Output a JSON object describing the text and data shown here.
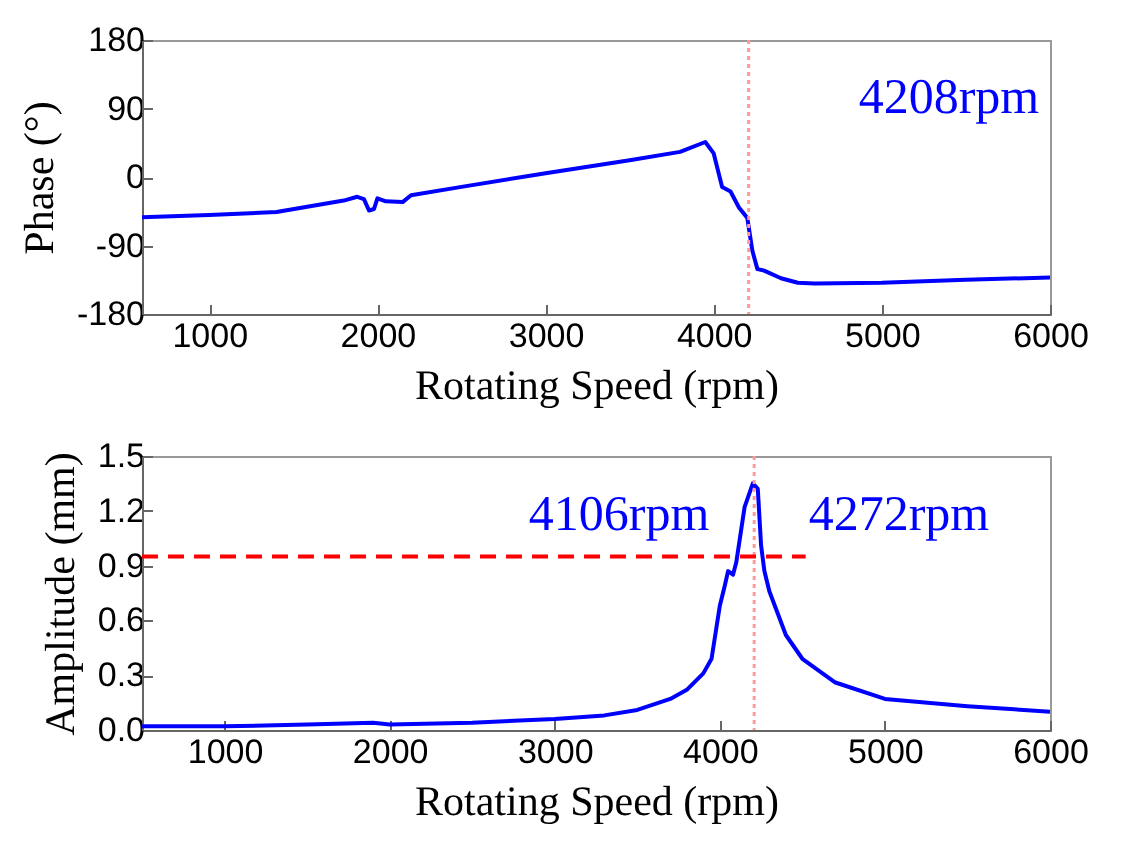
{
  "chart_data": [
    {
      "type": "line",
      "xlabel": "Rotating Speed (rpm)",
      "ylabel": "Phase (°)",
      "xlim": [
        600,
        6000
      ],
      "ylim": [
        -180,
        180
      ],
      "xticks": [
        1000,
        2000,
        3000,
        4000,
        5000,
        6000
      ],
      "yticks": [
        -180,
        -90,
        0,
        90,
        180
      ],
      "line_style": "solid",
      "marker": "none",
      "x": [
        600,
        1000,
        1400,
        1800,
        1880,
        1920,
        1950,
        1980,
        2000,
        2050,
        2150,
        2200,
        2500,
        3000,
        3500,
        3800,
        3950,
        4000,
        4050,
        4100,
        4150,
        4200,
        4230,
        4260,
        4300,
        4400,
        4500,
        4600,
        5000,
        5500,
        6000
      ],
      "series": [
        {
          "color": "#0000ff",
          "values": [
            -53,
            -50,
            -46,
            -31,
            -26,
            -29,
            -44,
            -42,
            -28,
            -32,
            -33,
            -24,
            -13,
            5,
            22,
            33,
            46,
            31,
            -13,
            -19,
            -40,
            -54,
            -97,
            -121,
            -123,
            -133,
            -139,
            -140,
            -139,
            -135,
            -132
          ]
        }
      ],
      "ref_lines": [
        {
          "axis": "x",
          "value": 4208,
          "color": "#ff9999",
          "line_style": "dotted"
        }
      ],
      "annotations": [
        {
          "text": "4208rpm",
          "x": 4208,
          "y": 0
        }
      ]
    },
    {
      "type": "line",
      "xlabel": "Rotating Speed (rpm)",
      "ylabel": "Amplitude (mm)",
      "xlim": [
        500,
        6000
      ],
      "ylim": [
        0,
        1.5
      ],
      "xticks": [
        1000,
        2000,
        3000,
        4000,
        5000,
        6000
      ],
      "yticks": [
        {
          "value": 0,
          "label": "0.0"
        },
        0.3,
        0.6,
        0.9,
        1.2,
        1.5
      ],
      "line_style": "solid",
      "marker": "none",
      "x": [
        500,
        1000,
        1500,
        1900,
        2000,
        2500,
        3000,
        3300,
        3500,
        3700,
        3800,
        3900,
        3950,
        4000,
        4030,
        4050,
        4080,
        4100,
        4150,
        4200,
        4230,
        4250,
        4270,
        4300,
        4400,
        4500,
        4700,
        5000,
        5500,
        6000
      ],
      "series": [
        {
          "color": "#0000ff",
          "values": [
            0.02,
            0.02,
            0.03,
            0.04,
            0.03,
            0.04,
            0.06,
            0.08,
            0.11,
            0.17,
            0.22,
            0.31,
            0.39,
            0.68,
            0.79,
            0.87,
            0.85,
            0.92,
            1.22,
            1.35,
            1.32,
            1.01,
            0.87,
            0.76,
            0.52,
            0.39,
            0.26,
            0.17,
            0.13,
            0.1
          ]
        },
        {
          "type": "line",
          "color": "#ff0000",
          "line_style": "dashed",
          "x": [
            500,
            4520
          ],
          "values": [
            0.95,
            0.95
          ]
        }
      ],
      "ref_lines": [
        {
          "axis": "x",
          "value": 4208,
          "color": "#ff9999",
          "line_style": "dotted"
        }
      ],
      "annotations": [
        {
          "text": "4106rpm",
          "x": 4106,
          "y": 0.95
        },
        {
          "text": "4272rpm",
          "x": 4272,
          "y": 0.95
        }
      ]
    }
  ]
}
